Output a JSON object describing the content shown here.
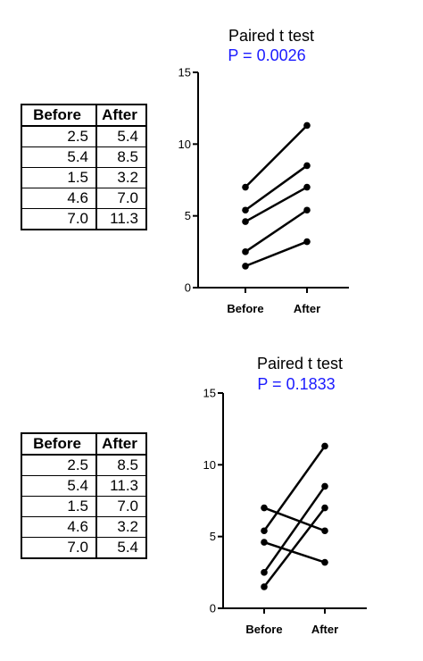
{
  "chart_data": [
    {
      "type": "line",
      "title": "Paired t test",
      "subtitle": "P = 0.0026",
      "subtitle_color": "#1a1aff",
      "categories": [
        "Before",
        "After"
      ],
      "ylim": [
        0,
        15
      ],
      "yticks": [
        "0",
        "5",
        "10",
        "15"
      ],
      "grid": false,
      "pairs": [
        [
          2.5,
          5.4
        ],
        [
          5.4,
          8.5
        ],
        [
          1.5,
          3.2
        ],
        [
          4.6,
          7.0
        ],
        [
          7.0,
          11.3
        ]
      ],
      "table": {
        "headers": [
          "Before",
          "After"
        ],
        "rows": [
          [
            "2.5",
            "5.4"
          ],
          [
            "5.4",
            "8.5"
          ],
          [
            "1.5",
            "3.2"
          ],
          [
            "4.6",
            "7.0"
          ],
          [
            "7.0",
            "11.3"
          ]
        ]
      }
    },
    {
      "type": "line",
      "title": "Paired t test",
      "subtitle": "P = 0.1833",
      "subtitle_color": "#1a1aff",
      "categories": [
        "Before",
        "After"
      ],
      "ylim": [
        0,
        15
      ],
      "yticks": [
        "0",
        "5",
        "10",
        "15"
      ],
      "grid": false,
      "pairs": [
        [
          2.5,
          8.5
        ],
        [
          5.4,
          11.3
        ],
        [
          1.5,
          7.0
        ],
        [
          4.6,
          3.2
        ],
        [
          7.0,
          5.4
        ]
      ],
      "table": {
        "headers": [
          "Before",
          "After"
        ],
        "rows": [
          [
            "2.5",
            "8.5"
          ],
          [
            "5.4",
            "11.3"
          ],
          [
            "1.5",
            "7.0"
          ],
          [
            "4.6",
            "3.2"
          ],
          [
            "7.0",
            "5.4"
          ]
        ]
      }
    }
  ]
}
